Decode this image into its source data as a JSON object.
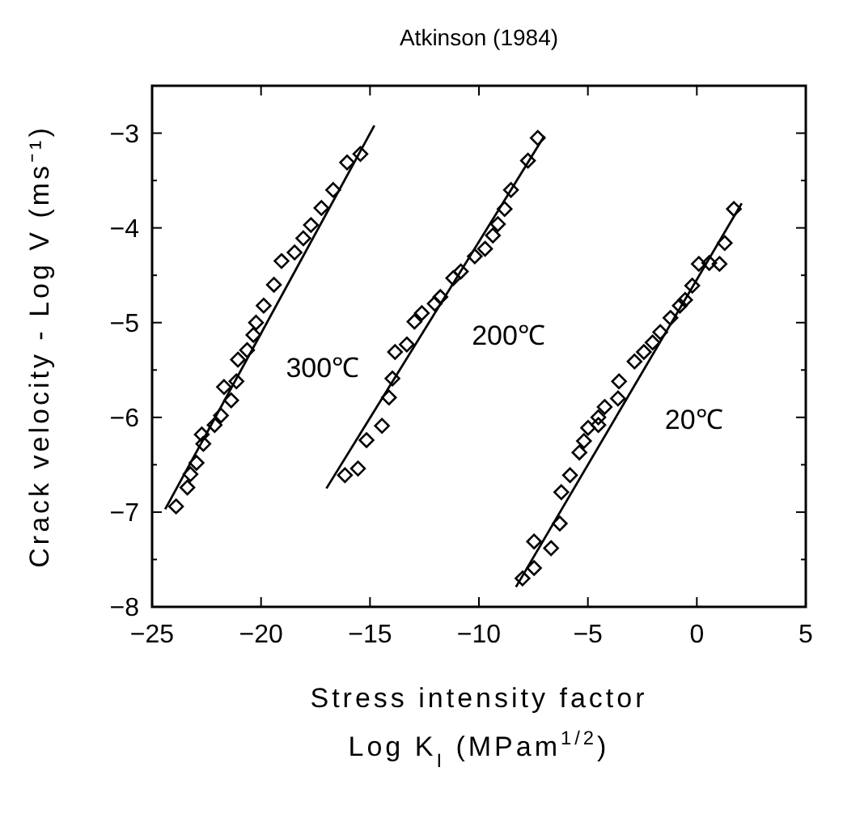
{
  "chart_data": {
    "type": "scatter",
    "title": "Atkinson (1984)",
    "xlabel": "Stress intensity factor\nLog K$_{I}$ (MPam$^{1/2}$)",
    "ylabel": "Crack velocity - Log V (ms⁻¹)",
    "xlim": [
      -25,
      5
    ],
    "xticks": [
      -25,
      -20,
      -15,
      -10,
      -5,
      0,
      5
    ],
    "ylim": [
      -8,
      -2.5
    ],
    "yticks": [
      -8,
      {
        "value": -7.5,
        "label": null
      },
      -7,
      {
        "value": -6.5,
        "label": null
      },
      -6,
      {
        "value": -5.5,
        "label": null
      },
      -5,
      {
        "value": -4.5,
        "label": null
      },
      -4,
      {
        "value": -3.5,
        "label": null
      },
      -3
    ],
    "grid": false,
    "series": [
      {
        "name": "300℃",
        "marker": "diamond",
        "color": "#000000",
        "x": [
          -23.9,
          -23.38,
          -23.24,
          -22.96,
          -22.65,
          -22.72,
          -22.13,
          -21.84,
          -21.7,
          -21.37,
          -21.13,
          -21.06,
          -20.64,
          -20.35,
          -20.23,
          -19.88,
          -19.41,
          -19.06,
          -18.46,
          -18.06,
          -17.71,
          -17.23,
          -16.69,
          -16.05,
          -15.44
        ],
        "values": [
          -6.94,
          -6.74,
          -6.6,
          -6.48,
          -6.28,
          -6.18,
          -6.08,
          -5.98,
          -5.68,
          -5.82,
          -5.62,
          -5.39,
          -5.29,
          -5.13,
          -5.0,
          -4.82,
          -4.6,
          -4.35,
          -4.26,
          -4.11,
          -3.97,
          -3.79,
          -3.6,
          -3.31,
          -3.22
        ]
      },
      {
        "name": "200℃",
        "marker": "diamond",
        "color": "#000000",
        "x": [
          -16.15,
          -15.55,
          -15.16,
          -14.45,
          -14.13,
          -13.97,
          -13.85,
          -13.31,
          -12.96,
          -12.62,
          -12.03,
          -11.77,
          -11.18,
          -10.83,
          -10.19,
          -9.72,
          -9.36,
          -9.13,
          -8.82,
          -8.53,
          -7.75,
          -7.3
        ],
        "values": [
          -6.61,
          -6.54,
          -6.24,
          -6.09,
          -5.79,
          -5.59,
          -5.31,
          -5.23,
          -4.99,
          -4.9,
          -4.8,
          -4.73,
          -4.53,
          -4.46,
          -4.3,
          -4.22,
          -4.08,
          -3.96,
          -3.8,
          -3.6,
          -3.29,
          -3.05
        ]
      },
      {
        "name": "20℃",
        "marker": "diamond",
        "color": "#000000",
        "x": [
          -8.0,
          -7.47,
          -7.47,
          -6.69,
          -6.29,
          -6.22,
          -5.82,
          -5.39,
          -5.18,
          -4.99,
          -4.52,
          -4.52,
          -4.23,
          -3.62,
          -3.57,
          -2.86,
          -2.43,
          -2.03,
          -1.68,
          -1.21,
          -0.78,
          -0.54,
          -0.21,
          0.09,
          0.57,
          1.04,
          1.28,
          1.7
        ],
        "values": [
          -7.7,
          -7.59,
          -7.31,
          -7.38,
          -7.12,
          -6.79,
          -6.61,
          -6.37,
          -6.25,
          -6.11,
          -6.08,
          -6.0,
          -5.89,
          -5.8,
          -5.62,
          -5.41,
          -5.31,
          -5.21,
          -5.1,
          -4.95,
          -4.82,
          -4.76,
          -4.61,
          -4.38,
          -4.37,
          -4.38,
          -4.16,
          -3.8
        ]
      },
      {
        "type": "line",
        "color": "#000000",
        "x": [
          -24.4,
          -14.8
        ],
        "values": [
          -6.97,
          -2.92
        ]
      },
      {
        "type": "line",
        "color": "#000000",
        "x": [
          -17.0,
          -7.0
        ],
        "values": [
          -6.75,
          -3.03
        ]
      },
      {
        "type": "line",
        "color": "#000000",
        "x": [
          -8.3,
          2.06
        ],
        "values": [
          -7.79,
          -3.74
        ]
      }
    ]
  }
}
